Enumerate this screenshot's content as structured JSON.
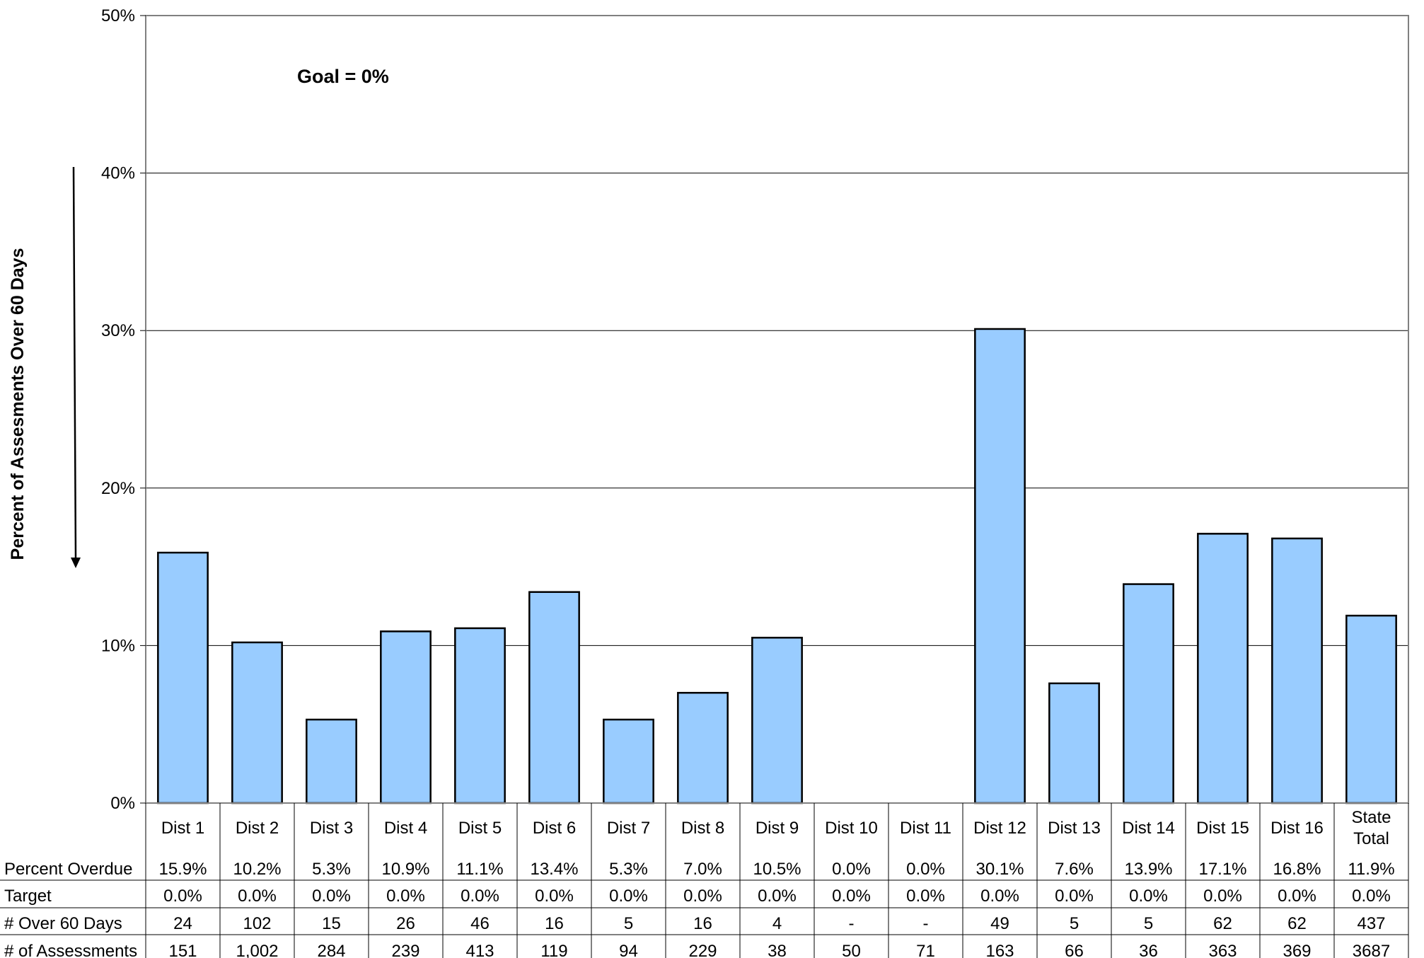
{
  "chart_data": {
    "type": "bar",
    "ylabel": "Percent of Assesments Over 60 Days",
    "annotation": "Goal = 0%",
    "ylim": [
      0,
      0.5
    ],
    "yticks": [
      {
        "value": 0,
        "label": "0%"
      },
      {
        "value": 0.1,
        "label": "10%"
      },
      {
        "value": 0.2,
        "label": "20%"
      },
      {
        "value": 0.3,
        "label": "30%"
      },
      {
        "value": 0.4,
        "label": "40%"
      },
      {
        "value": 0.5,
        "label": "50%"
      }
    ],
    "grid": true,
    "bar_color": "#99CCFF",
    "categories": [
      [
        "Dist 1"
      ],
      [
        "Dist 2"
      ],
      [
        "Dist 3"
      ],
      [
        "Dist 4"
      ],
      [
        "Dist 5"
      ],
      [
        "Dist 6"
      ],
      [
        "Dist 7"
      ],
      [
        "Dist 8"
      ],
      [
        "Dist 9"
      ],
      [
        "Dist 10"
      ],
      [
        "Dist 11"
      ],
      [
        "Dist 12"
      ],
      [
        "Dist 13"
      ],
      [
        "Dist 14"
      ],
      [
        "Dist 15"
      ],
      [
        "Dist 16"
      ],
      [
        "State",
        "Total"
      ]
    ],
    "values": [
      0.159,
      0.102,
      0.053,
      0.109,
      0.111,
      0.134,
      0.053,
      0.07,
      0.105,
      0.0,
      0.0,
      0.301,
      0.076,
      0.139,
      0.171,
      0.168,
      0.119
    ],
    "table": [
      {
        "label": "Percent Overdue",
        "cells": [
          "15.9%",
          "10.2%",
          "5.3%",
          "10.9%",
          "11.1%",
          "13.4%",
          "5.3%",
          "7.0%",
          "10.5%",
          "0.0%",
          "0.0%",
          "30.1%",
          "7.6%",
          "13.9%",
          "17.1%",
          "16.8%",
          "11.9%"
        ]
      },
      {
        "label": "Target",
        "cells": [
          "0.0%",
          "0.0%",
          "0.0%",
          "0.0%",
          "0.0%",
          "0.0%",
          "0.0%",
          "0.0%",
          "0.0%",
          "0.0%",
          "0.0%",
          "0.0%",
          "0.0%",
          "0.0%",
          "0.0%",
          "0.0%",
          "0.0%"
        ]
      },
      {
        "label": "# Over 60 Days",
        "cells": [
          "24",
          "102",
          "15",
          "26",
          "46",
          "16",
          "5",
          "16",
          "4",
          "-",
          "-",
          "49",
          "5",
          "5",
          "62",
          "62",
          "437"
        ]
      },
      {
        "label": "# of Assessments",
        "cells": [
          "151",
          "1,002",
          "284",
          "239",
          "413",
          "119",
          "94",
          "229",
          "38",
          "50",
          "71",
          "163",
          "66",
          "36",
          "363",
          "369",
          "3687"
        ]
      }
    ]
  }
}
